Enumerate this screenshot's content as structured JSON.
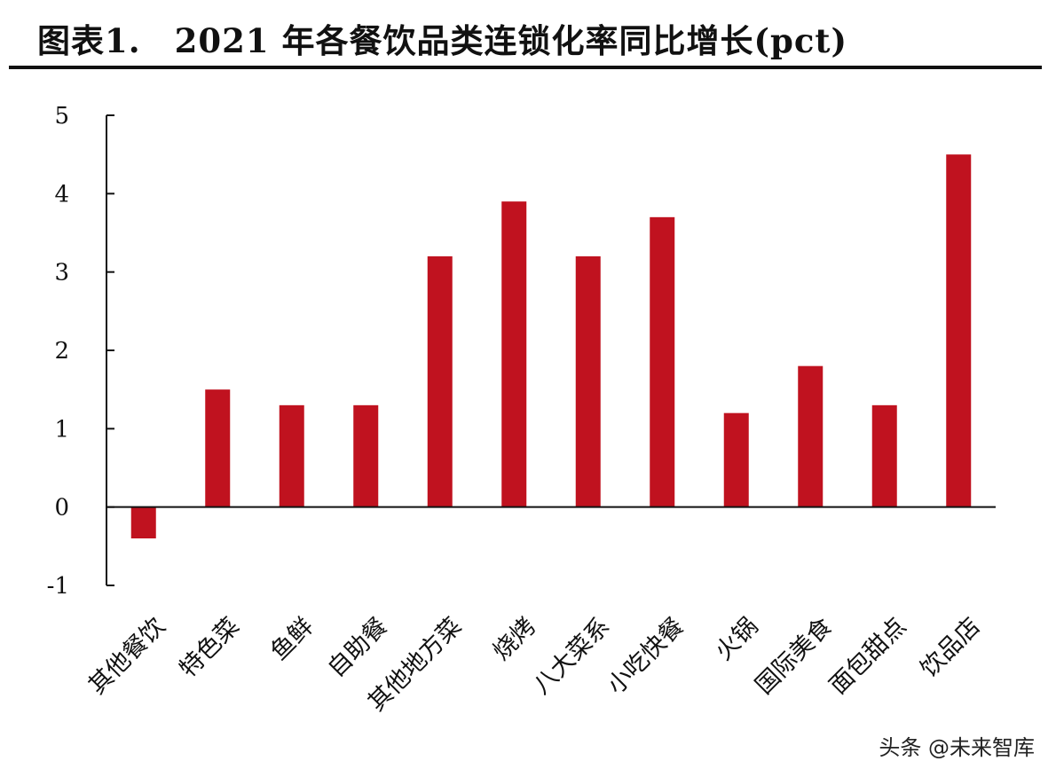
{
  "title": "图表1.　2021 年各餐饮品类连锁化率同比增长(pct)",
  "watermark": "头条 @未来智库",
  "chart_data": {
    "type": "bar",
    "title": "图表1.　2021 年各餐饮品类连锁化率同比增长(pct)",
    "xlabel": "",
    "ylabel": "",
    "categories": [
      "其他餐饮",
      "特色菜",
      "鱼鲜",
      "自助餐",
      "其他地方菜",
      "烧烤",
      "八大菜系",
      "小吃快餐",
      "火锅",
      "国际美食",
      "面包甜点",
      "饮品店"
    ],
    "values": [
      -0.4,
      1.5,
      1.3,
      1.3,
      3.2,
      3.9,
      3.2,
      3.7,
      1.2,
      1.8,
      1.3,
      4.5
    ],
    "ylim": [
      -1,
      5
    ],
    "yticks": [
      "-1",
      "0",
      "1",
      "2",
      "3",
      "4",
      "5"
    ],
    "bar_color": "#c0121f",
    "grid": false,
    "legend": "none"
  }
}
